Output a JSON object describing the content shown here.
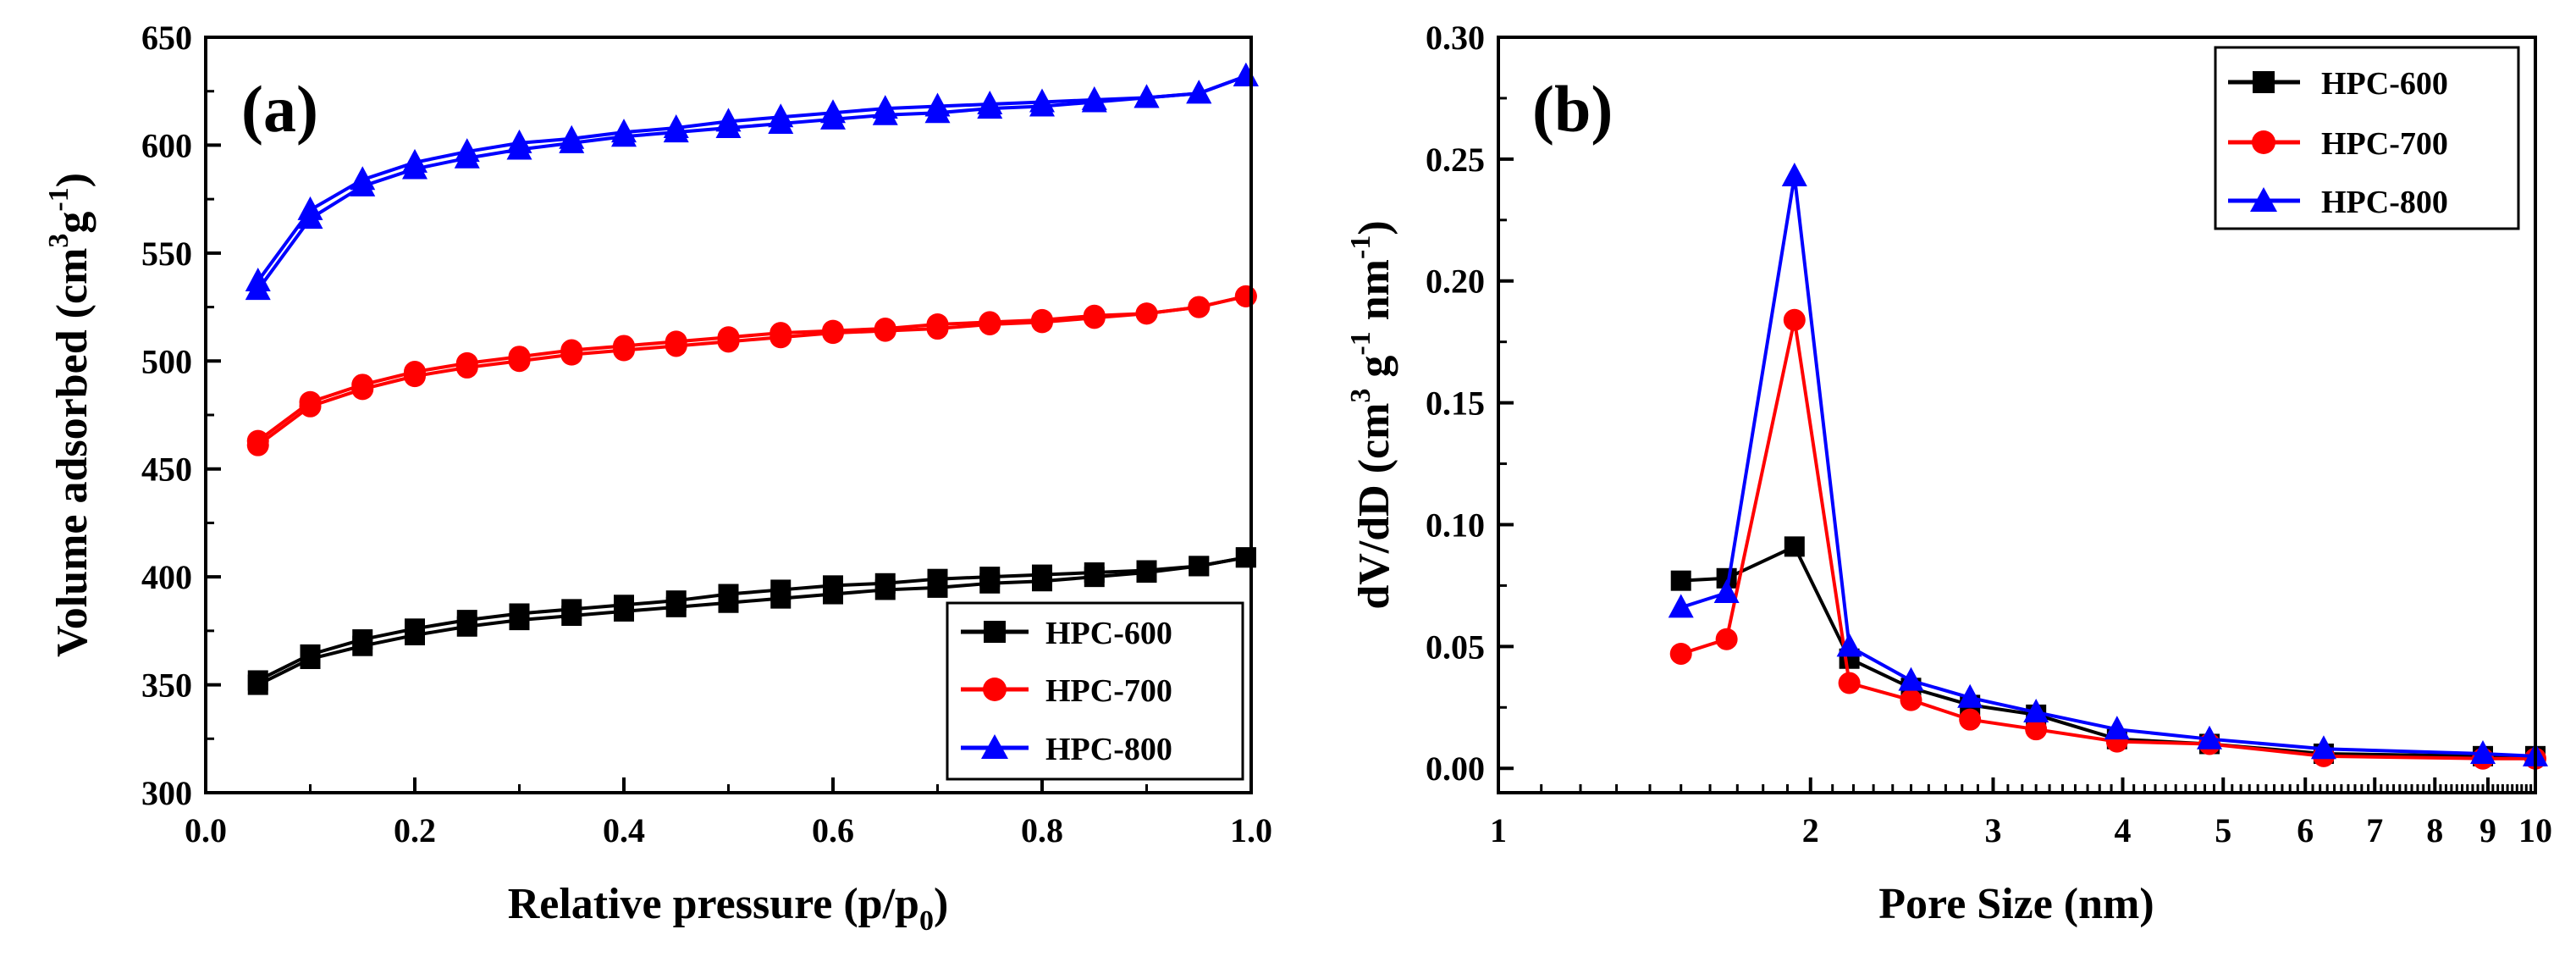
{
  "chart_data": [
    {
      "panel": "a",
      "panel_label": "(a)",
      "type": "line",
      "xlabel": "Relative pressure (p/p",
      "xlabel_sub": "0",
      "xlabel_end": ")",
      "ylabel": "Volume adsorbed (cm",
      "ylabel_sup1": "3",
      "ylabel_mid": "g",
      "ylabel_sup2": "-1",
      "ylabel_end": ")",
      "xlim": [
        0.0,
        1.0
      ],
      "ylim": [
        300,
        650
      ],
      "xticks": [
        0.0,
        0.2,
        0.4,
        0.6,
        0.8,
        1.0
      ],
      "xtick_labels": [
        "0.0",
        "0.2",
        "0.4",
        "0.6",
        "0.8",
        "1.0"
      ],
      "yticks": [
        300,
        350,
        400,
        450,
        500,
        550,
        600,
        650
      ],
      "ytick_labels": [
        "300",
        "350",
        "400",
        "450",
        "500",
        "550",
        "600",
        "650"
      ],
      "legend_position": "bottom-right",
      "series": [
        {
          "name": "HPC-600",
          "color": "#000000",
          "marker": "square",
          "x": [
            0.05,
            0.1,
            0.15,
            0.2,
            0.25,
            0.3,
            0.35,
            0.4,
            0.45,
            0.5,
            0.55,
            0.6,
            0.65,
            0.7,
            0.75,
            0.8,
            0.85,
            0.9,
            0.95,
            0.995
          ],
          "y": [
            352,
            364,
            371,
            376,
            380,
            383,
            385,
            387,
            389,
            392,
            394,
            396,
            397,
            399,
            400,
            401,
            402,
            403,
            405,
            409
          ],
          "y_desorption": [
            350,
            362,
            368,
            373,
            377,
            380,
            382,
            384,
            386,
            388,
            390,
            392,
            394,
            395,
            397,
            398,
            400,
            402,
            405,
            409
          ]
        },
        {
          "name": "HPC-700",
          "color": "#ff0000",
          "marker": "circle",
          "x": [
            0.05,
            0.1,
            0.15,
            0.2,
            0.25,
            0.3,
            0.35,
            0.4,
            0.45,
            0.5,
            0.55,
            0.6,
            0.65,
            0.7,
            0.75,
            0.8,
            0.85,
            0.9,
            0.95,
            0.995
          ],
          "y": [
            463,
            481,
            489,
            495,
            499,
            502,
            505,
            507,
            509,
            511,
            513,
            514,
            515,
            517,
            518,
            519,
            521,
            522,
            525,
            530
          ],
          "y_desorption": [
            461,
            479,
            487,
            493,
            497,
            500,
            503,
            505,
            507,
            509,
            511,
            513,
            514,
            515,
            517,
            518,
            520,
            522,
            525,
            530
          ]
        },
        {
          "name": "HPC-800",
          "color": "#0000ff",
          "marker": "triangle",
          "x": [
            0.05,
            0.1,
            0.15,
            0.2,
            0.25,
            0.3,
            0.35,
            0.4,
            0.45,
            0.5,
            0.55,
            0.6,
            0.65,
            0.7,
            0.75,
            0.8,
            0.85,
            0.9,
            0.95,
            0.995
          ],
          "y": [
            537,
            570,
            584,
            592,
            597,
            601,
            603,
            606,
            608,
            611,
            613,
            615,
            617,
            618,
            619,
            620,
            621,
            622,
            624,
            632
          ],
          "y_desorption": [
            533,
            566,
            581,
            589,
            594,
            598,
            601,
            604,
            606,
            608,
            610,
            612,
            614,
            615,
            617,
            618,
            620,
            622,
            624,
            632
          ]
        }
      ]
    },
    {
      "panel": "b",
      "panel_label": "(b)",
      "type": "line",
      "xscale": "log",
      "xlabel": "Pore Size (nm)",
      "ylabel": "dV/dD (cm",
      "ylabel_sup1": "3",
      "ylabel_mid": "g",
      "ylabel_sup2": "-1",
      "ylabel_mid2": "nm",
      "ylabel_sup3": "-1",
      "ylabel_end": ")",
      "xlim": [
        1,
        10
      ],
      "ylim": [
        -0.01,
        0.3
      ],
      "xticks": [
        1,
        2,
        3,
        4,
        5,
        6,
        7,
        8,
        9,
        10
      ],
      "xtick_labels": [
        "1",
        "2",
        "3",
        "4",
        "5",
        "6",
        "7",
        "8",
        "9",
        "10"
      ],
      "yticks": [
        0.0,
        0.05,
        0.1,
        0.15,
        0.2,
        0.25,
        0.3
      ],
      "ytick_labels": [
        "0.00",
        "0.05",
        "0.10",
        "0.15",
        "0.20",
        "0.25",
        "0.30"
      ],
      "legend_position": "top-right",
      "series": [
        {
          "name": "HPC-600",
          "color": "#000000",
          "marker": "square",
          "x": [
            1.5,
            1.66,
            1.93,
            2.18,
            2.5,
            2.85,
            3.3,
            3.95,
            4.85,
            6.25,
            8.9,
            10.0
          ],
          "y": [
            0.077,
            0.078,
            0.091,
            0.045,
            0.033,
            0.026,
            0.022,
            0.012,
            0.01,
            0.006,
            0.005,
            0.005
          ]
        },
        {
          "name": "HPC-700",
          "color": "#ff0000",
          "marker": "circle",
          "x": [
            1.5,
            1.66,
            1.93,
            2.18,
            2.5,
            2.85,
            3.3,
            3.95,
            4.85,
            6.25,
            8.9,
            10.0
          ],
          "y": [
            0.047,
            0.053,
            0.184,
            0.035,
            0.028,
            0.02,
            0.016,
            0.011,
            0.01,
            0.005,
            0.004,
            0.004
          ]
        },
        {
          "name": "HPC-800",
          "color": "#0000ff",
          "marker": "triangle",
          "x": [
            1.5,
            1.66,
            1.93,
            2.18,
            2.5,
            2.85,
            3.3,
            3.95,
            4.85,
            6.25,
            8.9,
            10.0
          ],
          "y": [
            0.066,
            0.072,
            0.243,
            0.05,
            0.036,
            0.029,
            0.023,
            0.016,
            0.012,
            0.008,
            0.006,
            0.005
          ]
        }
      ]
    }
  ]
}
